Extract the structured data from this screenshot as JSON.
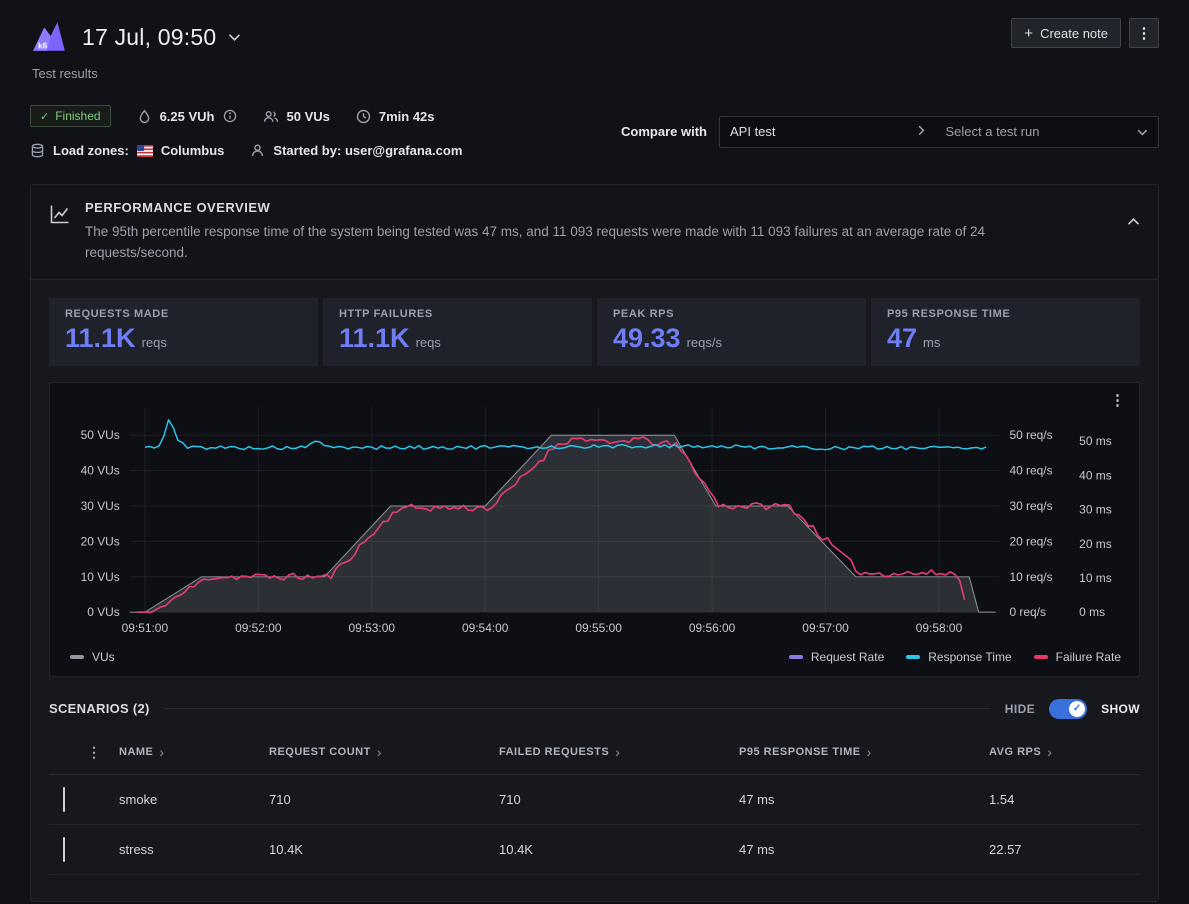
{
  "icons": {
    "check": "✓",
    "kebab": "⋮",
    "plus": "+",
    "sort": "›"
  },
  "colors": {
    "accent": "#6f7ef5",
    "toggle": "#3871dc",
    "badge_green": "#7ccb7f"
  },
  "header": {
    "title": "17 Jul, 09:50",
    "subtitle": "Test results",
    "create_note": "Create note"
  },
  "meta": {
    "status": "Finished",
    "vuh": "6.25 VUh",
    "vus": "50 VUs",
    "duration": "7min 42s",
    "load_zones_label": "Load zones:",
    "load_zone": "Columbus",
    "started_by_label": "Started by:",
    "started_by": "user@grafana.com",
    "compare_label": "Compare with",
    "compare_test": "API test",
    "compare_placeholder": "Select a test run"
  },
  "overview": {
    "title": "PERFORMANCE OVERVIEW",
    "description": "The 95th percentile response time of the system being tested was 47 ms, and 11 093 requests were made with 11 093 failures at an average rate of 24 requests/second.",
    "stats": [
      {
        "label": "REQUESTS MADE",
        "value": "11.1K",
        "unit": "reqs"
      },
      {
        "label": "HTTP FAILURES",
        "value": "11.1K",
        "unit": "reqs"
      },
      {
        "label": "PEAK RPS",
        "value": "49.33",
        "unit": "reqs/s"
      },
      {
        "label": "P95 RESPONSE TIME",
        "value": "47",
        "unit": "ms"
      }
    ]
  },
  "chart_data": {
    "type": "line",
    "x_domain": [
      52,
      512
    ],
    "x_ticks": [
      {
        "t": 60,
        "label": "09:51:00"
      },
      {
        "t": 120,
        "label": "09:52:00"
      },
      {
        "t": 180,
        "label": "09:53:00"
      },
      {
        "t": 240,
        "label": "09:54:00"
      },
      {
        "t": 300,
        "label": "09:55:00"
      },
      {
        "t": 360,
        "label": "09:56:00"
      },
      {
        "t": 420,
        "label": "09:57:00"
      },
      {
        "t": 480,
        "label": "09:58:00"
      }
    ],
    "y_ticks": [
      0,
      10,
      20,
      30,
      40,
      50
    ],
    "y_max": {
      "main": 58,
      "ms": 60
    },
    "axes_units": {
      "left": "VUs",
      "right1": "req/s",
      "right2": "ms"
    },
    "series": [
      {
        "name": "VUs",
        "axis": "main",
        "type": "area",
        "color": "#9196a1",
        "fill": "rgba(145,150,161,0.24)",
        "noise": 0,
        "seed": 3,
        "points": [
          [
            52,
            0
          ],
          [
            60,
            0
          ],
          [
            90,
            10
          ],
          [
            155,
            10
          ],
          [
            190,
            30
          ],
          [
            240,
            30
          ],
          [
            275,
            50
          ],
          [
            340,
            50
          ],
          [
            362,
            30
          ],
          [
            400,
            30
          ],
          [
            436,
            10
          ],
          [
            496,
            10
          ],
          [
            501,
            0
          ],
          [
            510,
            0
          ]
        ]
      },
      {
        "name": "Request Rate",
        "axis": "main",
        "type": "line",
        "color": "#8a7ce0",
        "noise": 1.0,
        "seed": 11,
        "points": [
          [
            56,
            0
          ],
          [
            64,
            0
          ],
          [
            94,
            10
          ],
          [
            158,
            10
          ],
          [
            194,
            29.5
          ],
          [
            243,
            29.5
          ],
          [
            279,
            48
          ],
          [
            292,
            49.3
          ],
          [
            305,
            47.4
          ],
          [
            318,
            49
          ],
          [
            332,
            47.8
          ],
          [
            342,
            47
          ],
          [
            364,
            30
          ],
          [
            401,
            30
          ],
          [
            439,
            11
          ],
          [
            490,
            11
          ],
          [
            495,
            0
          ]
        ]
      },
      {
        "name": "Failure Rate",
        "axis": "main",
        "type": "line",
        "color": "#e8376b",
        "noise": 1.0,
        "seed": 11,
        "points": [
          [
            56,
            0
          ],
          [
            64,
            0
          ],
          [
            94,
            10
          ],
          [
            158,
            10
          ],
          [
            194,
            29.5
          ],
          [
            243,
            29.5
          ],
          [
            279,
            48
          ],
          [
            292,
            49.3
          ],
          [
            305,
            47.4
          ],
          [
            318,
            49
          ],
          [
            332,
            47.8
          ],
          [
            342,
            47
          ],
          [
            364,
            30
          ],
          [
            401,
            30
          ],
          [
            439,
            11
          ],
          [
            490,
            11
          ],
          [
            495,
            0
          ]
        ]
      },
      {
        "name": "Response Time",
        "axis": "ms",
        "type": "line",
        "color": "#2bc6e8",
        "noise": 0.55,
        "seed": 5,
        "points": [
          [
            60,
            48
          ],
          [
            68,
            48.5
          ],
          [
            73,
            57
          ],
          [
            77,
            50.5
          ],
          [
            82,
            48.2
          ],
          [
            144,
            48
          ],
          [
            150,
            50.3
          ],
          [
            156,
            48.1
          ],
          [
            250,
            48.2
          ],
          [
            340,
            48.6
          ],
          [
            420,
            48
          ],
          [
            505,
            48.2
          ]
        ]
      }
    ],
    "legend_left": [
      {
        "label": "VUs",
        "color": "#9196a1"
      }
    ],
    "legend_right": [
      {
        "label": "Request Rate",
        "color": "#8a7ce0"
      },
      {
        "label": "Response Time",
        "color": "#2bc6e8"
      },
      {
        "label": "Failure Rate",
        "color": "#e8376b"
      }
    ]
  },
  "scenarios": {
    "title": "SCENARIOS (2)",
    "hide": "HIDE",
    "show": "SHOW",
    "columns": [
      "NAME",
      "REQUEST COUNT",
      "FAILED REQUESTS",
      "P95 RESPONSE TIME",
      "AVG RPS"
    ],
    "rows": [
      {
        "name": "smoke",
        "request_count": "710",
        "failed_requests": "710",
        "p95": "47 ms",
        "avg_rps": "1.54"
      },
      {
        "name": "stress",
        "request_count": "10.4K",
        "failed_requests": "10.4K",
        "p95": "47 ms",
        "avg_rps": "22.57"
      }
    ]
  }
}
